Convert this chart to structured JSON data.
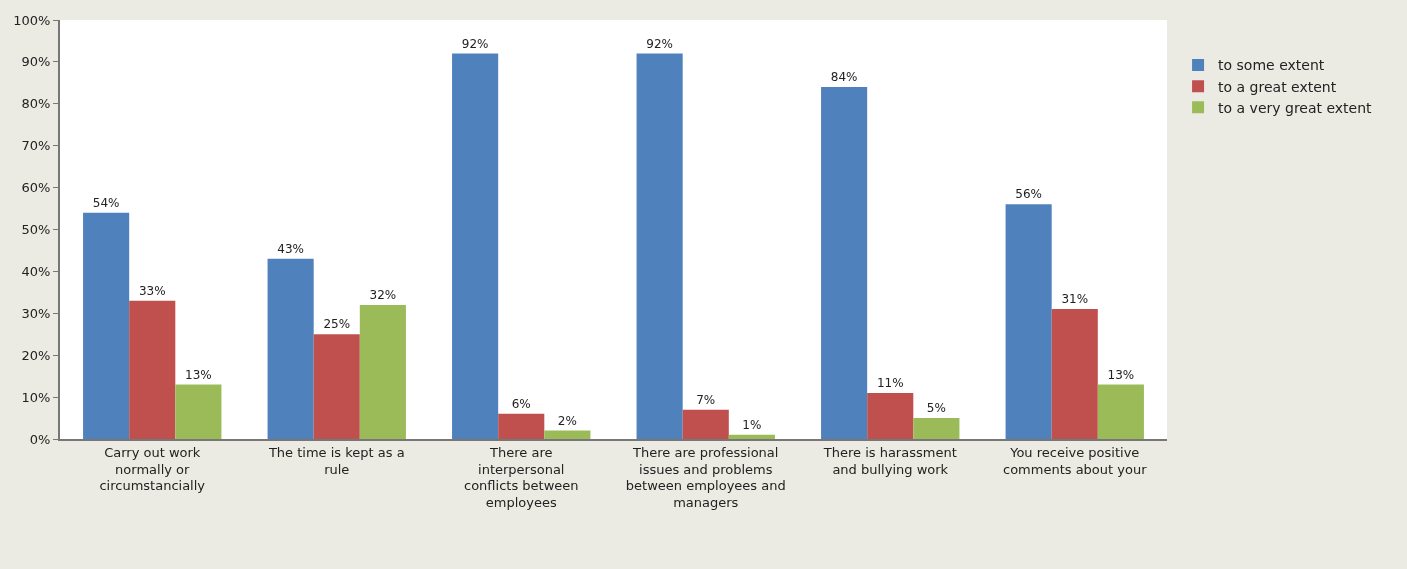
{
  "chart_data": {
    "type": "bar",
    "categories": [
      "Carry out work normally or circumstancially",
      "The time is kept as a rule",
      "There are interpersonal conflicts between employees",
      "There are professional issues and problems between employees and managers",
      "There is harassment and bullying work",
      "You receive positive comments about your"
    ],
    "series": [
      {
        "name": "to some extent",
        "color": "#4f81bd",
        "values": [
          54,
          43,
          92,
          92,
          84,
          56
        ],
        "value_labels": [
          "54%",
          "43%",
          "92%",
          "92%",
          "84%",
          "56%"
        ]
      },
      {
        "name": "to a great extent",
        "color": "#c0504d",
        "values": [
          33,
          25,
          6,
          7,
          11,
          31
        ],
        "value_labels": [
          "33%",
          "25%",
          "6%",
          "7%",
          "11%",
          "31%"
        ]
      },
      {
        "name": "to a very great extent",
        "color": "#9bbb59",
        "values": [
          13,
          32,
          2,
          1,
          5,
          13
        ],
        "value_labels": [
          "13%",
          "32%",
          "2%",
          "1%",
          "5%",
          "13%"
        ]
      }
    ],
    "ylim": [
      0,
      100
    ],
    "yticks": [
      {
        "value": 0,
        "label": "0%"
      },
      {
        "value": 10,
        "label": "10%"
      },
      {
        "value": 20,
        "label": "20%"
      },
      {
        "value": 30,
        "label": "30%"
      },
      {
        "value": 40,
        "label": "40%"
      },
      {
        "value": 50,
        "label": "50%"
      },
      {
        "value": 60,
        "label": "60%"
      },
      {
        "value": 70,
        "label": "70%"
      },
      {
        "value": 80,
        "label": "80%"
      },
      {
        "value": 90,
        "label": "90%"
      },
      {
        "value": 100,
        "label": "100%"
      }
    ],
    "grid": false,
    "legend": "top right"
  }
}
